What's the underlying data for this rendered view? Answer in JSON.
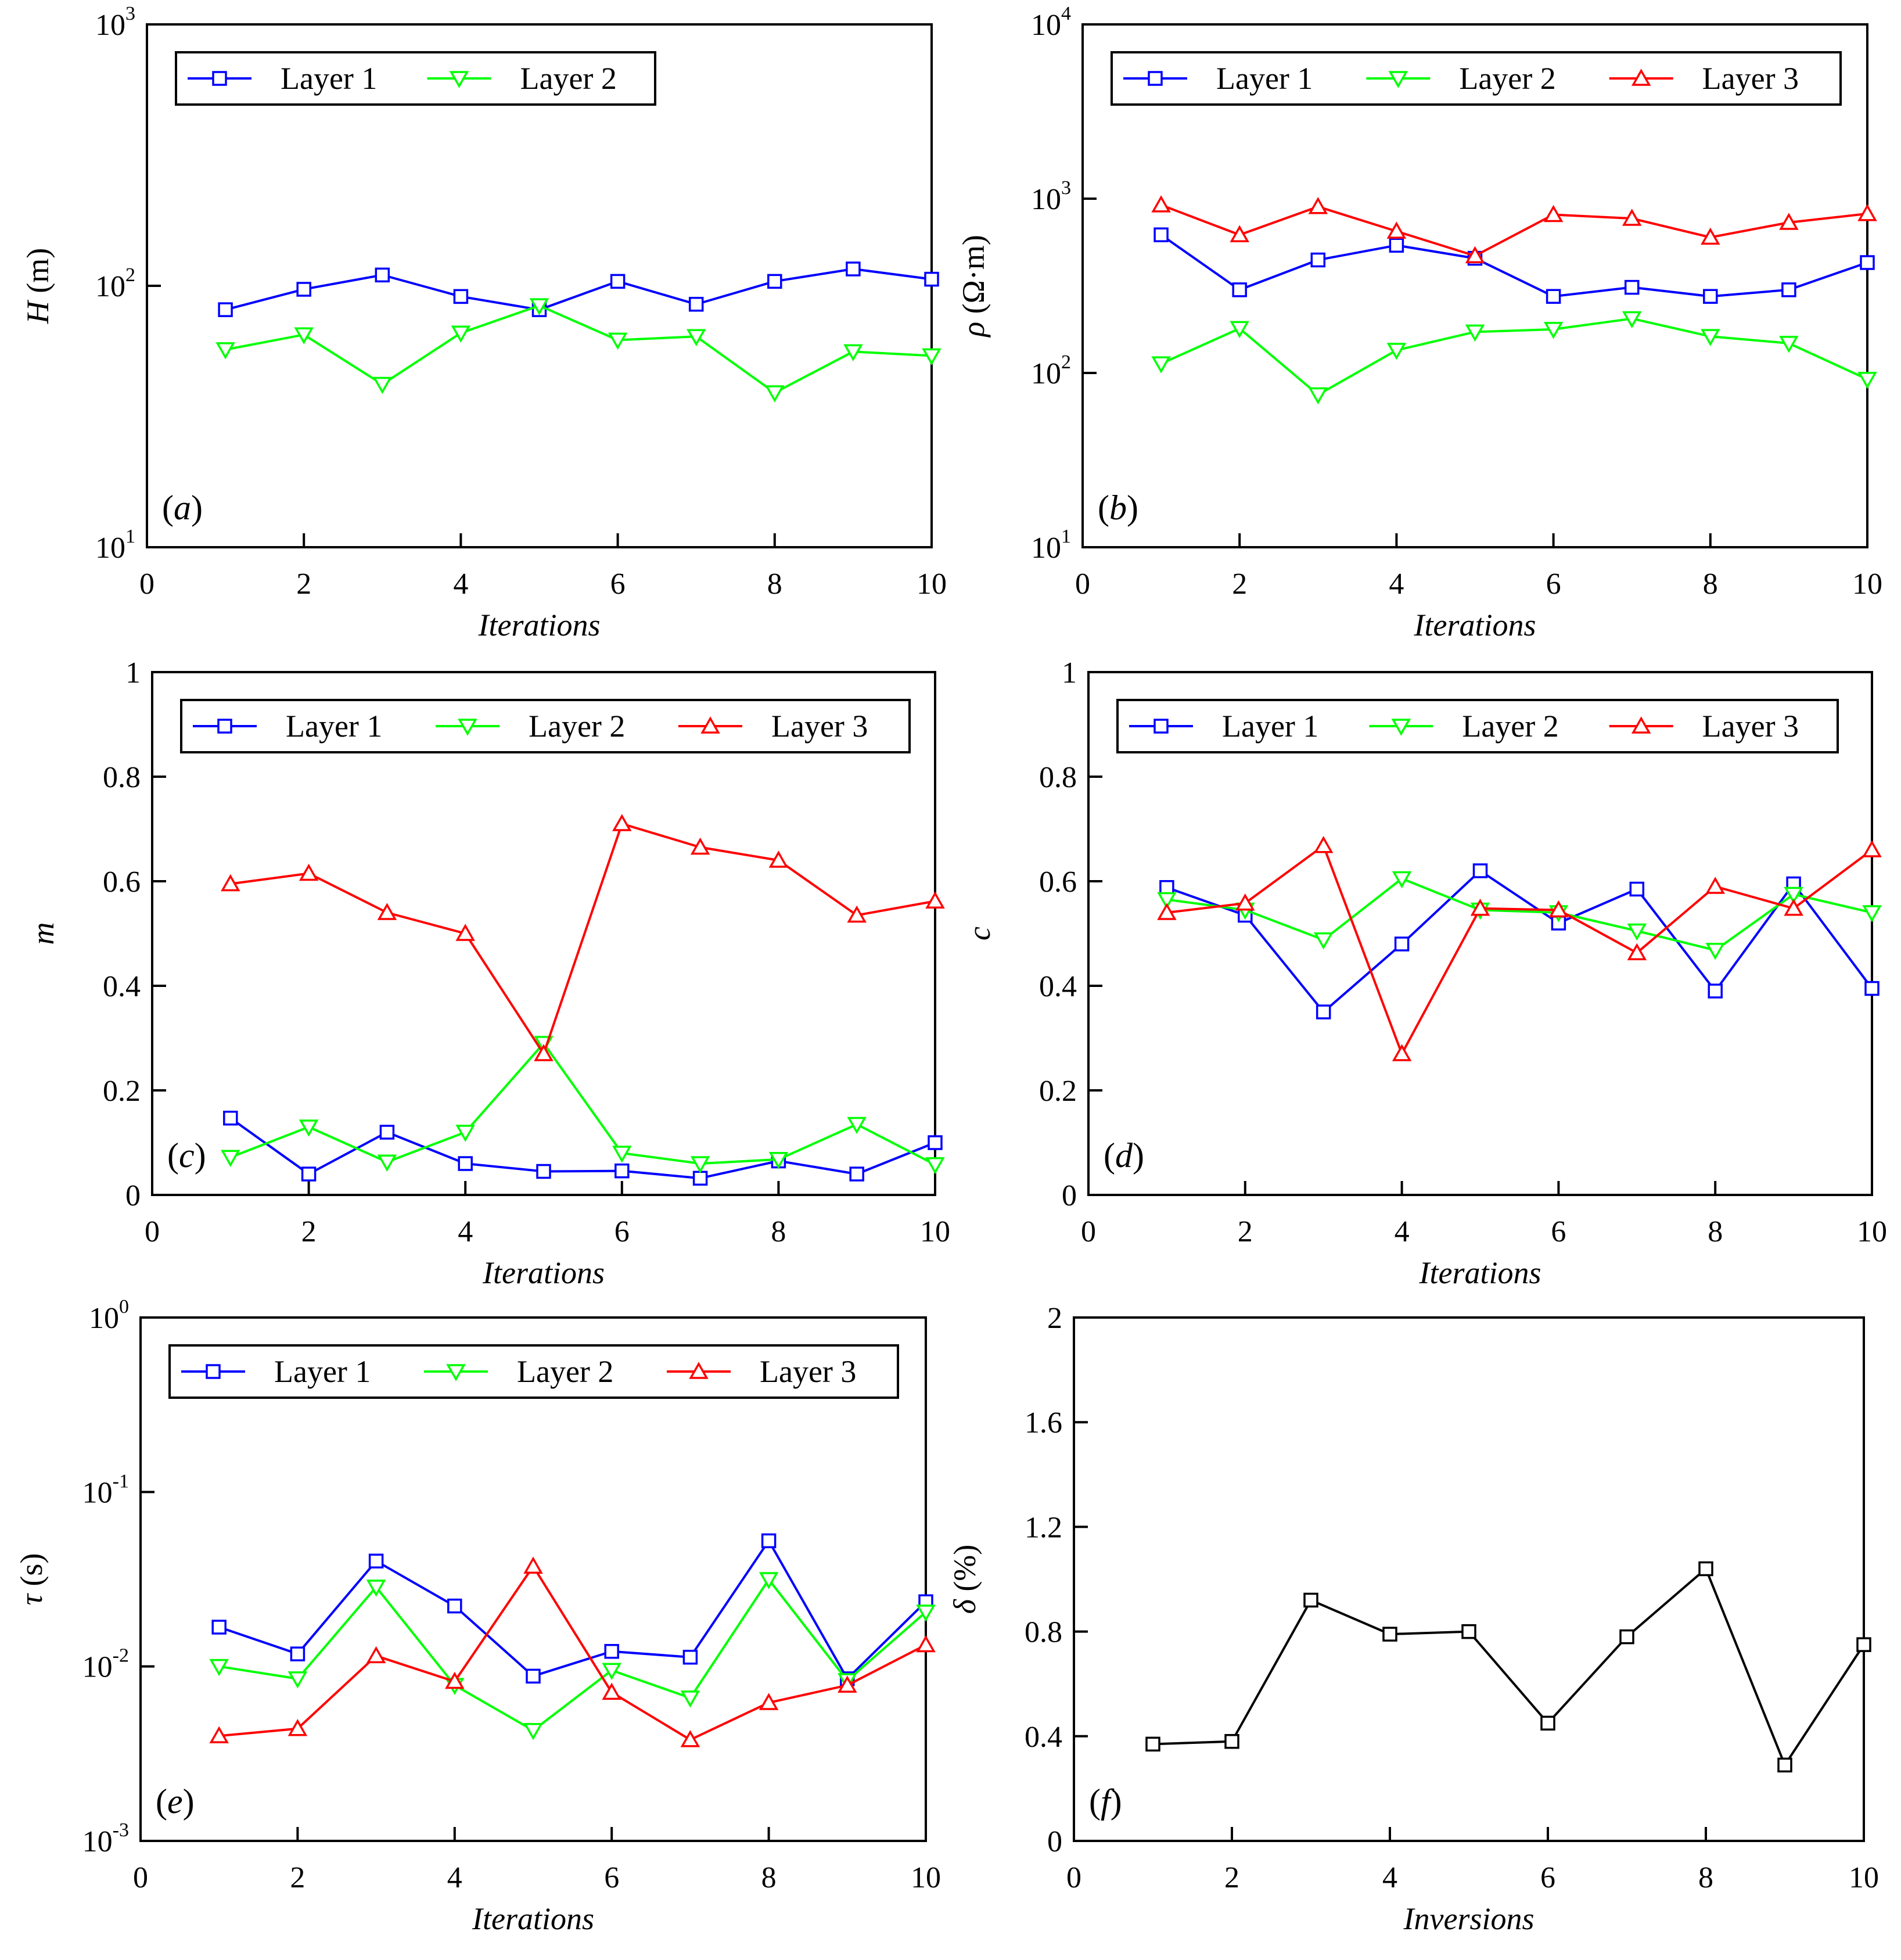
{
  "figure_width": 3273,
  "figure_height": 3374,
  "chart_data": [
    {
      "id": "a",
      "type": "line",
      "panel_label": "(a)",
      "panel_letter": "a",
      "scale": "log",
      "xlabel": "Iterations",
      "ylabel_symbol": "H",
      "ylabel_unit": "(m)",
      "xlim": [
        0,
        10
      ],
      "ylim": [
        10,
        1000
      ],
      "x_ticks": [
        "0",
        "2",
        "4",
        "6",
        "8",
        "10"
      ],
      "y_ticks": [
        {
          "base": "10",
          "exp": "1"
        },
        {
          "base": "10",
          "exp": "2"
        },
        {
          "base": "10",
          "exp": "3"
        }
      ],
      "x": [
        1,
        2,
        3,
        4,
        5,
        6,
        7,
        8,
        9,
        10
      ],
      "series": [
        {
          "name": "Layer 1",
          "color": "#0000ff",
          "marker": "square",
          "values": [
            81,
            97,
            110,
            91,
            81,
            104,
            85,
            104,
            116,
            106
          ]
        },
        {
          "name": "Layer 2",
          "color": "#00ff00",
          "marker": "triangle-down",
          "values": [
            57,
            65,
            42,
            66,
            84,
            62,
            64,
            39,
            56,
            54
          ]
        }
      ]
    },
    {
      "id": "b",
      "type": "line",
      "panel_label": "(b)",
      "panel_letter": "b",
      "scale": "log",
      "xlabel": "Iterations",
      "ylabel_symbol": "ρ",
      "ylabel_unit": "(Ω·m)",
      "xlim": [
        0,
        10
      ],
      "ylim": [
        10,
        10000
      ],
      "x_ticks": [
        "0",
        "2",
        "4",
        "6",
        "8",
        "10"
      ],
      "y_ticks": [
        {
          "base": "10",
          "exp": "1"
        },
        {
          "base": "10",
          "exp": "2"
        },
        {
          "base": "10",
          "exp": "3"
        },
        {
          "base": "10",
          "exp": "4"
        }
      ],
      "x": [
        1,
        2,
        3,
        4,
        5,
        6,
        7,
        8,
        9,
        10
      ],
      "series": [
        {
          "name": "Layer 1",
          "color": "#0000ff",
          "marker": "square",
          "values": [
            620,
            300,
            445,
            540,
            455,
            275,
            310,
            275,
            300,
            430
          ]
        },
        {
          "name": "Layer 2",
          "color": "#00ff00",
          "marker": "triangle-down",
          "values": [
            113,
            180,
            75,
            135,
            172,
            178,
            205,
            162,
            148,
            92
          ]
        },
        {
          "name": "Layer 3",
          "color": "#ff0000",
          "marker": "triangle-up",
          "values": [
            920,
            620,
            900,
            650,
            470,
            810,
            770,
            600,
            730,
            820
          ]
        }
      ]
    },
    {
      "id": "c",
      "type": "line",
      "panel_label": "(c)",
      "panel_letter": "c",
      "scale": "linear",
      "xlabel": "Iterations",
      "ylabel_symbol": "m",
      "ylabel_unit": "",
      "xlim": [
        0,
        10
      ],
      "ylim": [
        0,
        1
      ],
      "x_ticks": [
        "0",
        "2",
        "4",
        "6",
        "8",
        "10"
      ],
      "y_ticks": [
        "0",
        "0.2",
        "0.4",
        "0.6",
        "0.8",
        "1"
      ],
      "x": [
        1,
        2,
        3,
        4,
        5,
        6,
        7,
        8,
        9,
        10
      ],
      "series": [
        {
          "name": "Layer 1",
          "color": "#0000ff",
          "marker": "square",
          "values": [
            0.147,
            0.04,
            0.12,
            0.06,
            0.045,
            0.046,
            0.032,
            0.065,
            0.04,
            0.1
          ]
        },
        {
          "name": "Layer 2",
          "color": "#00ff00",
          "marker": "triangle-down",
          "values": [
            0.072,
            0.13,
            0.063,
            0.12,
            0.29,
            0.08,
            0.06,
            0.068,
            0.135,
            0.058
          ]
        },
        {
          "name": "Layer 3",
          "color": "#ff0000",
          "marker": "triangle-up",
          "values": [
            0.595,
            0.615,
            0.54,
            0.5,
            0.27,
            0.71,
            0.665,
            0.64,
            0.535,
            0.562
          ]
        }
      ]
    },
    {
      "id": "d",
      "type": "line",
      "panel_label": "(d)",
      "panel_letter": "d",
      "scale": "linear",
      "xlabel": "Iterations",
      "ylabel_symbol": "c",
      "ylabel_unit": "",
      "xlim": [
        0,
        10
      ],
      "ylim": [
        0,
        1
      ],
      "x_ticks": [
        "0",
        "2",
        "4",
        "6",
        "8",
        "10"
      ],
      "y_ticks": [
        "0",
        "0.2",
        "0.4",
        "0.6",
        "0.8",
        "1"
      ],
      "x": [
        1,
        2,
        3,
        4,
        5,
        6,
        7,
        8,
        9,
        10
      ],
      "series": [
        {
          "name": "Layer 1",
          "color": "#0000ff",
          "marker": "square",
          "values": [
            0.588,
            0.535,
            0.35,
            0.48,
            0.62,
            0.52,
            0.585,
            0.39,
            0.595,
            0.395
          ]
        },
        {
          "name": "Layer 2",
          "color": "#00ff00",
          "marker": "triangle-down",
          "values": [
            0.565,
            0.545,
            0.488,
            0.605,
            0.545,
            0.54,
            0.505,
            0.468,
            0.575,
            0.54
          ]
        },
        {
          "name": "Layer 3",
          "color": "#ff0000",
          "marker": "triangle-up",
          "values": [
            0.54,
            0.558,
            0.668,
            0.27,
            0.548,
            0.545,
            0.463,
            0.59,
            0.548,
            0.66
          ]
        }
      ]
    },
    {
      "id": "e",
      "type": "line",
      "panel_label": "(e)",
      "panel_letter": "e",
      "scale": "log",
      "xlabel": "Iterations",
      "ylabel_symbol": "τ",
      "ylabel_unit": "(s)",
      "xlim": [
        0,
        10
      ],
      "ylim": [
        0.001,
        1
      ],
      "x_ticks": [
        "0",
        "2",
        "4",
        "6",
        "8",
        "10"
      ],
      "y_ticks": [
        {
          "base": "10",
          "exp": "-3"
        },
        {
          "base": "10",
          "exp": "-2"
        },
        {
          "base": "10",
          "exp": "-1"
        },
        {
          "base": "10",
          "exp": "0"
        }
      ],
      "x": [
        1,
        2,
        3,
        4,
        5,
        6,
        7,
        8,
        9,
        10
      ],
      "series": [
        {
          "name": "Layer 1",
          "color": "#0000ff",
          "marker": "square",
          "values": [
            0.0168,
            0.0118,
            0.0402,
            0.0222,
            0.0088,
            0.0122,
            0.0113,
            0.0525,
            0.0085,
            0.0235
          ]
        },
        {
          "name": "Layer 2",
          "color": "#00ff00",
          "marker": "triangle-down",
          "values": [
            0.01,
            0.0085,
            0.0285,
            0.0078,
            0.0043,
            0.0095,
            0.0066,
            0.0315,
            0.0083,
            0.0205
          ]
        },
        {
          "name": "Layer 3",
          "color": "#ff0000",
          "marker": "triangle-up",
          "values": [
            0.004,
            0.0044,
            0.0115,
            0.0082,
            0.0375,
            0.0071,
            0.0038,
            0.0062,
            0.0078,
            0.0133
          ]
        }
      ]
    },
    {
      "id": "f",
      "type": "line",
      "panel_label": "(f)",
      "panel_letter": "f",
      "scale": "linear",
      "xlabel": "Inversions",
      "ylabel_symbol": "δ",
      "ylabel_unit": "(%)",
      "xlim": [
        0,
        10
      ],
      "ylim": [
        0,
        2
      ],
      "x_ticks": [
        "0",
        "2",
        "4",
        "6",
        "8",
        "10"
      ],
      "y_ticks": [
        "0",
        "0.4",
        "0.8",
        "1.2",
        "1.6",
        "2"
      ],
      "x": [
        1,
        2,
        3,
        4,
        5,
        6,
        7,
        8,
        9,
        10
      ],
      "series": [
        {
          "name": "",
          "color": "#000000",
          "marker": "square",
          "values": [
            0.37,
            0.38,
            0.92,
            0.79,
            0.8,
            0.45,
            0.78,
            1.04,
            0.29,
            0.75
          ]
        }
      ]
    }
  ]
}
